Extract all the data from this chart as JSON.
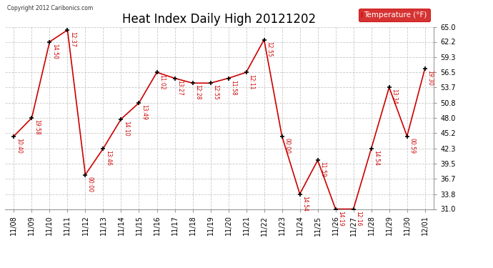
{
  "title": "Heat Index Daily High 20121202",
  "copyright": "Copyright 2012 Caribonics.com",
  "legend_label": "Temperature (°F)",
  "dates": [
    "11/08",
    "11/09",
    "11/10",
    "11/11",
    "11/12",
    "11/13",
    "11/14",
    "11/15",
    "11/16",
    "11/17",
    "11/18",
    "11/19",
    "11/20",
    "11/21",
    "11/22",
    "11/23",
    "11/24",
    "11/25",
    "11/26",
    "11/27",
    "11/28",
    "11/29",
    "11/30",
    "12/01"
  ],
  "values": [
    44.6,
    48.0,
    62.2,
    64.4,
    37.4,
    42.3,
    47.8,
    50.8,
    56.5,
    55.4,
    54.5,
    54.5,
    55.4,
    56.5,
    62.6,
    44.6,
    33.8,
    40.1,
    31.0,
    31.0,
    42.3,
    53.7,
    44.6,
    57.2
  ],
  "time_labels": [
    "10:40",
    "19:58",
    "14:50",
    "12:37",
    "00:00",
    "13:46",
    "14:10",
    "13:49",
    "11:02",
    "13:27",
    "12:28",
    "12:55",
    "11:58",
    "12:11",
    "12:55",
    "00:00",
    "14:54",
    "11:59",
    "14:19",
    "12:16",
    "14:54",
    "13:34",
    "00:59",
    "19:30"
  ],
  "ylim": [
    31.0,
    65.0
  ],
  "yticks": [
    31.0,
    33.8,
    36.7,
    39.5,
    42.3,
    45.2,
    48.0,
    50.8,
    53.7,
    56.5,
    59.3,
    62.2,
    65.0
  ],
  "line_color": "#cc0000",
  "marker_color": "#000000",
  "background_color": "#ffffff",
  "grid_color": "#bbbbbb",
  "title_fontsize": 12,
  "tick_fontsize": 7,
  "label_fontsize": 6,
  "legend_bg": "#cc0000",
  "legend_fg": "#ffffff"
}
